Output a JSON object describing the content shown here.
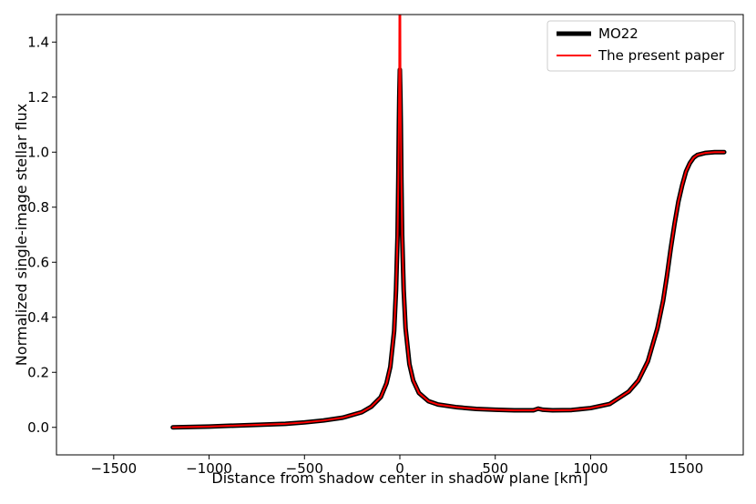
{
  "chart_data": {
    "type": "line",
    "title": "",
    "xlabel": "Distance from shadow center in shadow plane [km]",
    "ylabel": "Normalized single-image stellar flux",
    "xlim": [
      -1800,
      1800
    ],
    "ylim": [
      -0.1,
      1.5
    ],
    "xticks": [
      -1500,
      -1000,
      -500,
      0,
      500,
      1000,
      1500
    ],
    "yticks": [
      0.0,
      0.2,
      0.4,
      0.6,
      0.8,
      1.0,
      1.2,
      1.4
    ],
    "xtick_labels": [
      "−1500",
      "−1000",
      "−500",
      "0",
      "500",
      "1000",
      "1500"
    ],
    "ytick_labels": [
      "0.0",
      "0.2",
      "0.4",
      "0.6",
      "0.8",
      "1.0",
      "1.2",
      "1.4"
    ],
    "grid": false,
    "legend_position": "top-right",
    "series": [
      {
        "name": "MO22",
        "color": "#000000",
        "x": [
          -1190,
          -1000,
          -800,
          -600,
          -500,
          -400,
          -300,
          -200,
          -150,
          -100,
          -70,
          -50,
          -30,
          -20,
          -12,
          -8,
          -5,
          -3,
          0,
          3,
          5,
          8,
          12,
          20,
          30,
          50,
          70,
          100,
          150,
          200,
          300,
          400,
          500,
          600,
          700,
          725,
          730,
          750,
          800,
          900,
          1000,
          1100,
          1200,
          1250,
          1300,
          1350,
          1380,
          1400,
          1420,
          1440,
          1460,
          1480,
          1500,
          1520,
          1540,
          1560,
          1600,
          1650,
          1700
        ],
        "y": [
          0.0,
          0.003,
          0.008,
          0.013,
          0.018,
          0.025,
          0.035,
          0.055,
          0.075,
          0.11,
          0.16,
          0.22,
          0.35,
          0.5,
          0.7,
          0.9,
          1.1,
          1.2,
          1.3,
          1.2,
          1.1,
          0.9,
          0.7,
          0.5,
          0.36,
          0.23,
          0.17,
          0.125,
          0.095,
          0.083,
          0.073,
          0.067,
          0.064,
          0.062,
          0.062,
          0.068,
          0.067,
          0.064,
          0.062,
          0.063,
          0.07,
          0.085,
          0.13,
          0.17,
          0.24,
          0.36,
          0.46,
          0.55,
          0.65,
          0.74,
          0.82,
          0.88,
          0.93,
          0.96,
          0.98,
          0.99,
          0.997,
          1.0,
          1.0
        ]
      },
      {
        "name": "The present paper",
        "color": "#ff0000",
        "x": [
          -1190,
          -1000,
          -800,
          -600,
          -500,
          -400,
          -300,
          -200,
          -150,
          -100,
          -70,
          -50,
          -30,
          -20,
          -12,
          -8,
          -5,
          -3,
          -2,
          2,
          3,
          5,
          8,
          12,
          20,
          30,
          50,
          70,
          100,
          150,
          200,
          300,
          400,
          500,
          600,
          700,
          725,
          730,
          750,
          800,
          900,
          1000,
          1100,
          1200,
          1250,
          1300,
          1350,
          1380,
          1400,
          1420,
          1440,
          1460,
          1480,
          1500,
          1520,
          1540,
          1560,
          1600,
          1650,
          1700
        ],
        "y": [
          0.0,
          0.003,
          0.008,
          0.013,
          0.018,
          0.025,
          0.035,
          0.055,
          0.075,
          0.11,
          0.16,
          0.22,
          0.35,
          0.5,
          0.7,
          0.9,
          1.1,
          1.3,
          1.55,
          1.55,
          1.3,
          1.1,
          0.9,
          0.7,
          0.5,
          0.36,
          0.23,
          0.17,
          0.125,
          0.095,
          0.083,
          0.073,
          0.067,
          0.064,
          0.062,
          0.062,
          0.068,
          0.067,
          0.064,
          0.062,
          0.063,
          0.07,
          0.085,
          0.13,
          0.17,
          0.24,
          0.36,
          0.46,
          0.55,
          0.65,
          0.74,
          0.82,
          0.88,
          0.93,
          0.96,
          0.98,
          0.99,
          0.997,
          1.0,
          1.0
        ]
      }
    ]
  }
}
